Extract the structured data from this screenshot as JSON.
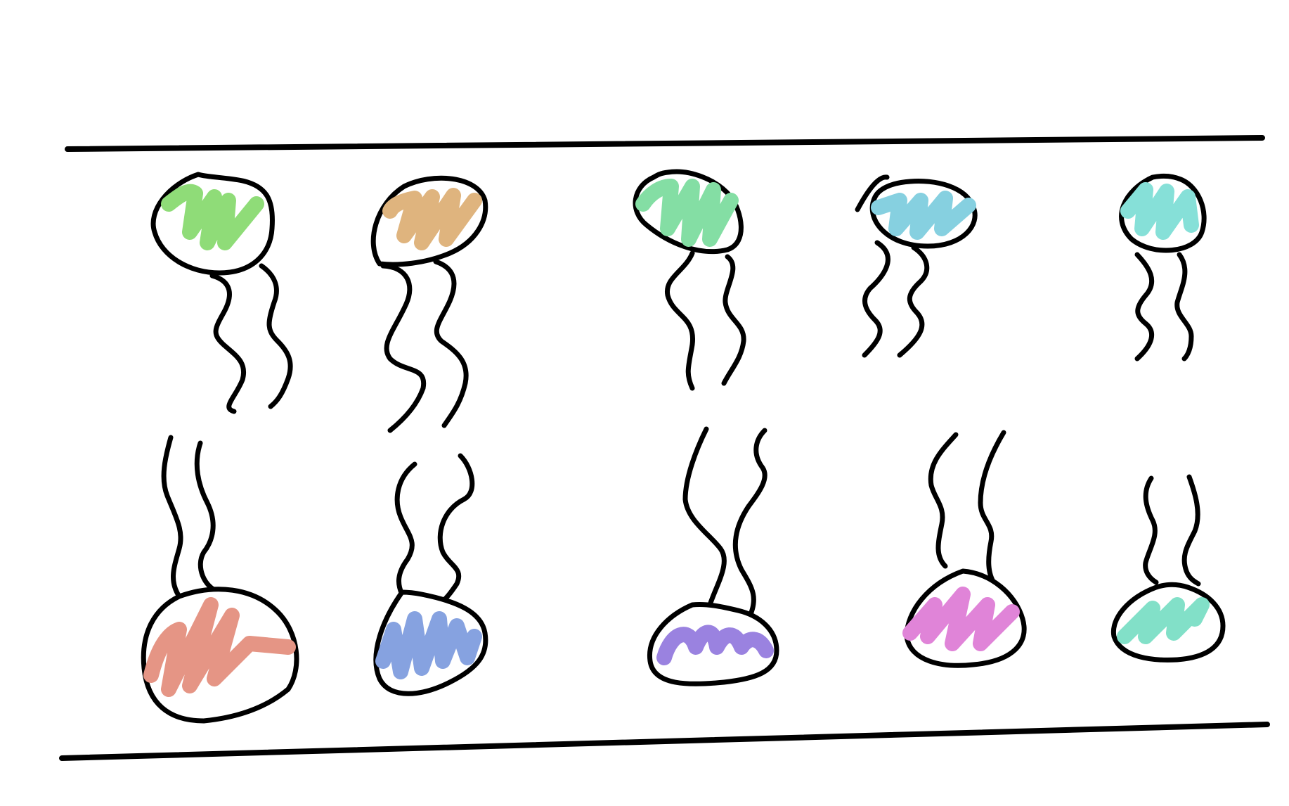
{
  "colors": {
    "ink": "#000000",
    "background": "#ffffff"
  },
  "rows": [
    {
      "name": "top-row",
      "orientation": "head-up-tails-down",
      "items": [
        {
          "name": "green",
          "fill": "#8fdc78"
        },
        {
          "name": "tan",
          "fill": "#dfb47e"
        },
        {
          "name": "mint-green",
          "fill": "#84dea4"
        },
        {
          "name": "sky-blue",
          "fill": "#86d0e0"
        },
        {
          "name": "aqua",
          "fill": "#86e0d8"
        }
      ]
    },
    {
      "name": "bottom-row",
      "orientation": "head-down-tails-up",
      "items": [
        {
          "name": "salmon",
          "fill": "#e59585"
        },
        {
          "name": "periwinkle",
          "fill": "#86a2e0"
        },
        {
          "name": "violet",
          "fill": "#9a82e0"
        },
        {
          "name": "pink",
          "fill": "#e084d8"
        },
        {
          "name": "seafoam",
          "fill": "#82e0c8"
        }
      ]
    }
  ]
}
